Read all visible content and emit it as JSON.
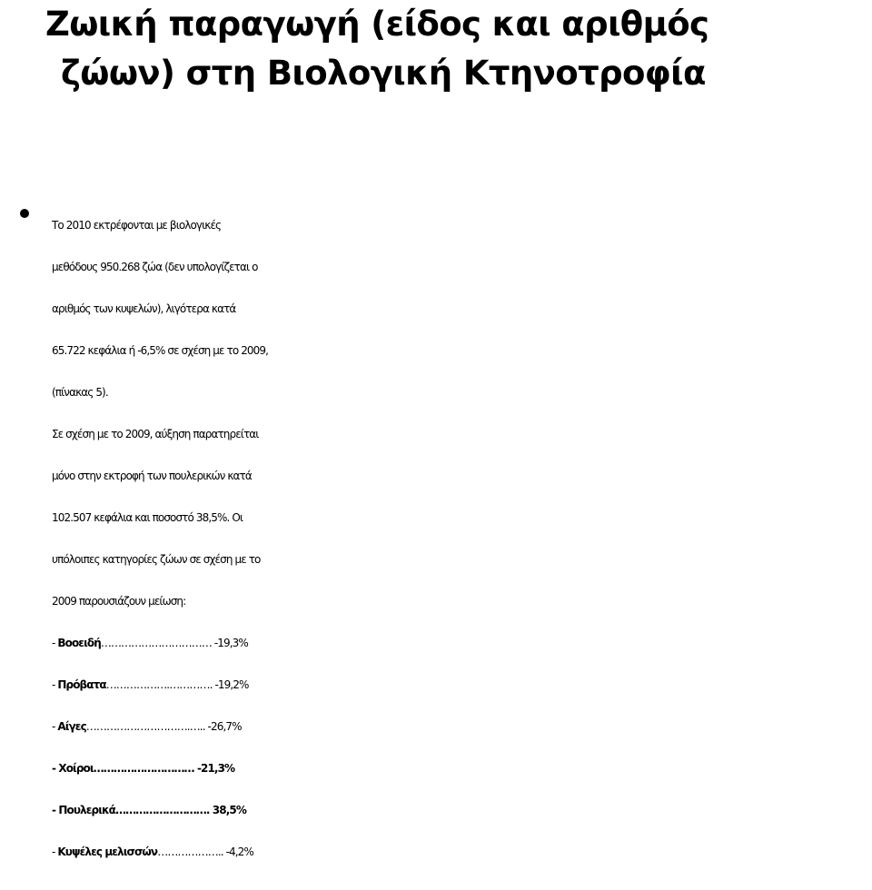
{
  "title": {
    "line1": "Ζωική παραγωγή (είδος και αριθμός",
    "line2": "ζώων) στη Βιολογική Κτηνοτροφία"
  },
  "paragraph": {
    "lines": [
      "Το 2010 εκτρέφονται με βιολογικές",
      "μεθόδους 950.268 ζώα (δεν υπολογίζεται ο",
      "αριθμός των κυψελών), λιγότερα κατά",
      "65.722 κεφάλια ή -6,5% σε σχέση με το 2009,",
      "(πίνακας 5).",
      "Σε σχέση με το 2009, αύξηση παρατηρείται",
      "μόνο στην εκτροφή των πουλερικών κατά",
      "102.507 κεφάλια και ποσοστό 38,5%. Οι",
      "υπόλοιπες κατηγορίες ζώων σε σχέση με το",
      "2009 παρουσιάζουν μείωση:"
    ]
  },
  "categories": [
    {
      "prefix": "- ",
      "name": "Βοοειδή",
      "leader": "……………………………",
      "value": " -19,3%"
    },
    {
      "prefix": "- ",
      "name": "Πρόβατα",
      "leader": "……………….………….",
      "value": " -19,2%"
    },
    {
      "prefix": "- ",
      "name": "Αίγες",
      "leader": "………………………….…..",
      "value": " -26,7%"
    },
    {
      "prefix": "- ",
      "name": "Χοίροι",
      "leader": "…………………………",
      "value": "  -21,3%"
    },
    {
      "prefix": "- ",
      "name": "Πουλερικά",
      "leader": "……………………….",
      "value": " 38,5%"
    },
    {
      "prefix": "- ",
      "name": "Κυψέλες μελισσών",
      "leader": "………………..",
      "value": " -4,2%"
    }
  ]
}
